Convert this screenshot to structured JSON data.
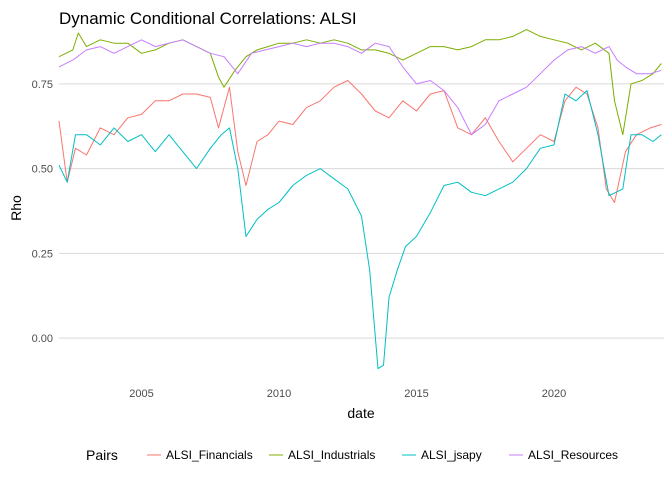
{
  "chart_data": {
    "type": "line",
    "title": "Dynamic Conditional Correlations: ALSI",
    "xlabel": "date",
    "ylabel": "Rho",
    "xlim": [
      2002.0,
      2024.0
    ],
    "ylim": [
      -0.1,
      0.9
    ],
    "x_ticks": [
      2005,
      2010,
      2015,
      2020
    ],
    "y_ticks": [
      0.0,
      0.25,
      0.5,
      0.75
    ],
    "y_tick_labels": [
      "0.00",
      "0.25",
      "0.50",
      "0.75"
    ],
    "grid": "horizontal major lines",
    "legend": {
      "title": "Pairs",
      "position": "bottom"
    },
    "series": [
      {
        "name": "ALSI_Financials",
        "color": "#F8766D",
        "points": [
          [
            2002.0,
            0.64
          ],
          [
            2002.3,
            0.46
          ],
          [
            2002.6,
            0.56
          ],
          [
            2003.0,
            0.54
          ],
          [
            2003.5,
            0.62
          ],
          [
            2004.0,
            0.6
          ],
          [
            2004.5,
            0.65
          ],
          [
            2005.0,
            0.66
          ],
          [
            2005.5,
            0.7
          ],
          [
            2006.0,
            0.7
          ],
          [
            2006.5,
            0.72
          ],
          [
            2007.0,
            0.72
          ],
          [
            2007.5,
            0.71
          ],
          [
            2007.8,
            0.62
          ],
          [
            2008.2,
            0.74
          ],
          [
            2008.5,
            0.55
          ],
          [
            2008.8,
            0.45
          ],
          [
            2009.2,
            0.58
          ],
          [
            2009.6,
            0.6
          ],
          [
            2010.0,
            0.64
          ],
          [
            2010.5,
            0.63
          ],
          [
            2011.0,
            0.68
          ],
          [
            2011.5,
            0.7
          ],
          [
            2012.0,
            0.74
          ],
          [
            2012.5,
            0.76
          ],
          [
            2013.0,
            0.72
          ],
          [
            2013.5,
            0.67
          ],
          [
            2014.0,
            0.65
          ],
          [
            2014.5,
            0.7
          ],
          [
            2015.0,
            0.67
          ],
          [
            2015.5,
            0.72
          ],
          [
            2016.0,
            0.73
          ],
          [
            2016.5,
            0.62
          ],
          [
            2017.0,
            0.6
          ],
          [
            2017.5,
            0.65
          ],
          [
            2018.0,
            0.58
          ],
          [
            2018.5,
            0.52
          ],
          [
            2019.0,
            0.56
          ],
          [
            2019.5,
            0.6
          ],
          [
            2020.0,
            0.58
          ],
          [
            2020.4,
            0.7
          ],
          [
            2020.8,
            0.74
          ],
          [
            2021.2,
            0.72
          ],
          [
            2021.6,
            0.62
          ],
          [
            2021.9,
            0.44
          ],
          [
            2022.2,
            0.4
          ],
          [
            2022.6,
            0.55
          ],
          [
            2023.0,
            0.6
          ],
          [
            2023.5,
            0.62
          ],
          [
            2023.9,
            0.63
          ]
        ]
      },
      {
        "name": "ALSI_Industrials",
        "color": "#7CAE00",
        "points": [
          [
            2002.0,
            0.83
          ],
          [
            2002.5,
            0.85
          ],
          [
            2002.7,
            0.9
          ],
          [
            2003.0,
            0.86
          ],
          [
            2003.5,
            0.88
          ],
          [
            2004.0,
            0.87
          ],
          [
            2004.5,
            0.87
          ],
          [
            2005.0,
            0.84
          ],
          [
            2005.5,
            0.85
          ],
          [
            2006.0,
            0.87
          ],
          [
            2006.5,
            0.88
          ],
          [
            2007.0,
            0.86
          ],
          [
            2007.5,
            0.84
          ],
          [
            2007.8,
            0.77
          ],
          [
            2008.0,
            0.74
          ],
          [
            2008.4,
            0.79
          ],
          [
            2008.8,
            0.83
          ],
          [
            2009.2,
            0.85
          ],
          [
            2009.6,
            0.86
          ],
          [
            2010.0,
            0.87
          ],
          [
            2010.5,
            0.87
          ],
          [
            2011.0,
            0.88
          ],
          [
            2011.5,
            0.87
          ],
          [
            2012.0,
            0.88
          ],
          [
            2012.5,
            0.87
          ],
          [
            2013.0,
            0.85
          ],
          [
            2013.5,
            0.85
          ],
          [
            2014.0,
            0.84
          ],
          [
            2014.5,
            0.82
          ],
          [
            2015.0,
            0.84
          ],
          [
            2015.5,
            0.86
          ],
          [
            2016.0,
            0.86
          ],
          [
            2016.5,
            0.85
          ],
          [
            2017.0,
            0.86
          ],
          [
            2017.5,
            0.88
          ],
          [
            2018.0,
            0.88
          ],
          [
            2018.5,
            0.89
          ],
          [
            2019.0,
            0.91
          ],
          [
            2019.5,
            0.89
          ],
          [
            2020.0,
            0.88
          ],
          [
            2020.5,
            0.87
          ],
          [
            2021.0,
            0.85
          ],
          [
            2021.5,
            0.87
          ],
          [
            2022.0,
            0.84
          ],
          [
            2022.2,
            0.7
          ],
          [
            2022.5,
            0.6
          ],
          [
            2022.8,
            0.75
          ],
          [
            2023.2,
            0.76
          ],
          [
            2023.6,
            0.78
          ],
          [
            2023.9,
            0.81
          ]
        ]
      },
      {
        "name": "ALSI_jsapy",
        "color": "#00BFC4",
        "points": [
          [
            2002.0,
            0.51
          ],
          [
            2002.3,
            0.46
          ],
          [
            2002.6,
            0.6
          ],
          [
            2003.0,
            0.6
          ],
          [
            2003.5,
            0.57
          ],
          [
            2004.0,
            0.62
          ],
          [
            2004.5,
            0.58
          ],
          [
            2005.0,
            0.6
          ],
          [
            2005.5,
            0.55
          ],
          [
            2006.0,
            0.6
          ],
          [
            2006.5,
            0.55
          ],
          [
            2007.0,
            0.5
          ],
          [
            2007.5,
            0.56
          ],
          [
            2007.9,
            0.6
          ],
          [
            2008.2,
            0.62
          ],
          [
            2008.5,
            0.5
          ],
          [
            2008.8,
            0.3
          ],
          [
            2009.2,
            0.35
          ],
          [
            2009.6,
            0.38
          ],
          [
            2010.0,
            0.4
          ],
          [
            2010.5,
            0.45
          ],
          [
            2011.0,
            0.48
          ],
          [
            2011.5,
            0.5
          ],
          [
            2012.0,
            0.47
          ],
          [
            2012.5,
            0.44
          ],
          [
            2013.0,
            0.36
          ],
          [
            2013.3,
            0.2
          ],
          [
            2013.6,
            -0.09
          ],
          [
            2013.8,
            -0.08
          ],
          [
            2014.0,
            0.12
          ],
          [
            2014.3,
            0.2
          ],
          [
            2014.6,
            0.27
          ],
          [
            2015.0,
            0.3
          ],
          [
            2015.5,
            0.37
          ],
          [
            2016.0,
            0.45
          ],
          [
            2016.5,
            0.46
          ],
          [
            2017.0,
            0.43
          ],
          [
            2017.5,
            0.42
          ],
          [
            2018.0,
            0.44
          ],
          [
            2018.5,
            0.46
          ],
          [
            2019.0,
            0.5
          ],
          [
            2019.5,
            0.56
          ],
          [
            2020.0,
            0.57
          ],
          [
            2020.4,
            0.72
          ],
          [
            2020.8,
            0.7
          ],
          [
            2021.2,
            0.73
          ],
          [
            2021.6,
            0.6
          ],
          [
            2022.0,
            0.42
          ],
          [
            2022.5,
            0.44
          ],
          [
            2022.8,
            0.6
          ],
          [
            2023.2,
            0.6
          ],
          [
            2023.6,
            0.58
          ],
          [
            2023.9,
            0.6
          ]
        ]
      },
      {
        "name": "ALSI_Resources",
        "color": "#C77CFF",
        "points": [
          [
            2002.0,
            0.8
          ],
          [
            2002.5,
            0.82
          ],
          [
            2003.0,
            0.85
          ],
          [
            2003.5,
            0.86
          ],
          [
            2004.0,
            0.84
          ],
          [
            2004.5,
            0.86
          ],
          [
            2005.0,
            0.88
          ],
          [
            2005.5,
            0.86
          ],
          [
            2006.0,
            0.87
          ],
          [
            2006.5,
            0.88
          ],
          [
            2007.0,
            0.86
          ],
          [
            2007.5,
            0.84
          ],
          [
            2008.0,
            0.83
          ],
          [
            2008.5,
            0.78
          ],
          [
            2009.0,
            0.84
          ],
          [
            2009.5,
            0.85
          ],
          [
            2010.0,
            0.86
          ],
          [
            2010.5,
            0.87
          ],
          [
            2011.0,
            0.86
          ],
          [
            2011.5,
            0.87
          ],
          [
            2012.0,
            0.87
          ],
          [
            2012.5,
            0.86
          ],
          [
            2013.0,
            0.84
          ],
          [
            2013.5,
            0.87
          ],
          [
            2014.0,
            0.86
          ],
          [
            2014.5,
            0.8
          ],
          [
            2015.0,
            0.75
          ],
          [
            2015.5,
            0.76
          ],
          [
            2016.0,
            0.73
          ],
          [
            2016.5,
            0.68
          ],
          [
            2017.0,
            0.6
          ],
          [
            2017.5,
            0.63
          ],
          [
            2018.0,
            0.7
          ],
          [
            2018.5,
            0.72
          ],
          [
            2019.0,
            0.74
          ],
          [
            2019.5,
            0.78
          ],
          [
            2020.0,
            0.82
          ],
          [
            2020.5,
            0.85
          ],
          [
            2021.0,
            0.86
          ],
          [
            2021.5,
            0.84
          ],
          [
            2022.0,
            0.86
          ],
          [
            2022.3,
            0.82
          ],
          [
            2022.6,
            0.8
          ],
          [
            2023.0,
            0.78
          ],
          [
            2023.5,
            0.78
          ],
          [
            2023.9,
            0.79
          ]
        ]
      }
    ]
  }
}
